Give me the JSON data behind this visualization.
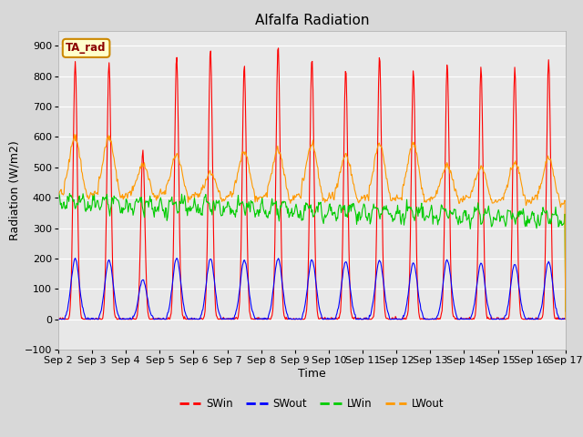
{
  "title": "Alfalfa Radiation",
  "xlabel": "Time",
  "ylabel": "Radiation (W/m2)",
  "ylim": [
    -100,
    950
  ],
  "annotation": "TA_rad",
  "legend_entries": [
    "SWin",
    "SWout",
    "LWin",
    "LWout"
  ],
  "colors": {
    "SWin": "#ff0000",
    "SWout": "#0000ff",
    "LWin": "#00cc00",
    "LWout": "#ff9900"
  },
  "xtick_labels": [
    "Sep 2",
    "Sep 3",
    "Sep 4",
    "Sep 5",
    "Sep 6",
    "Sep 7",
    "Sep 8",
    "Sep 9",
    "Sep 10",
    "Sep 11",
    "Sep 12",
    "Sep 13",
    "Sep 14",
    "Sep 15",
    "Sep 16",
    "Sep 17"
  ],
  "num_days": 15,
  "points_per_day": 48,
  "background_color": "#e8e8e8",
  "title_fontsize": 11,
  "axis_fontsize": 9,
  "tick_fontsize": 8
}
